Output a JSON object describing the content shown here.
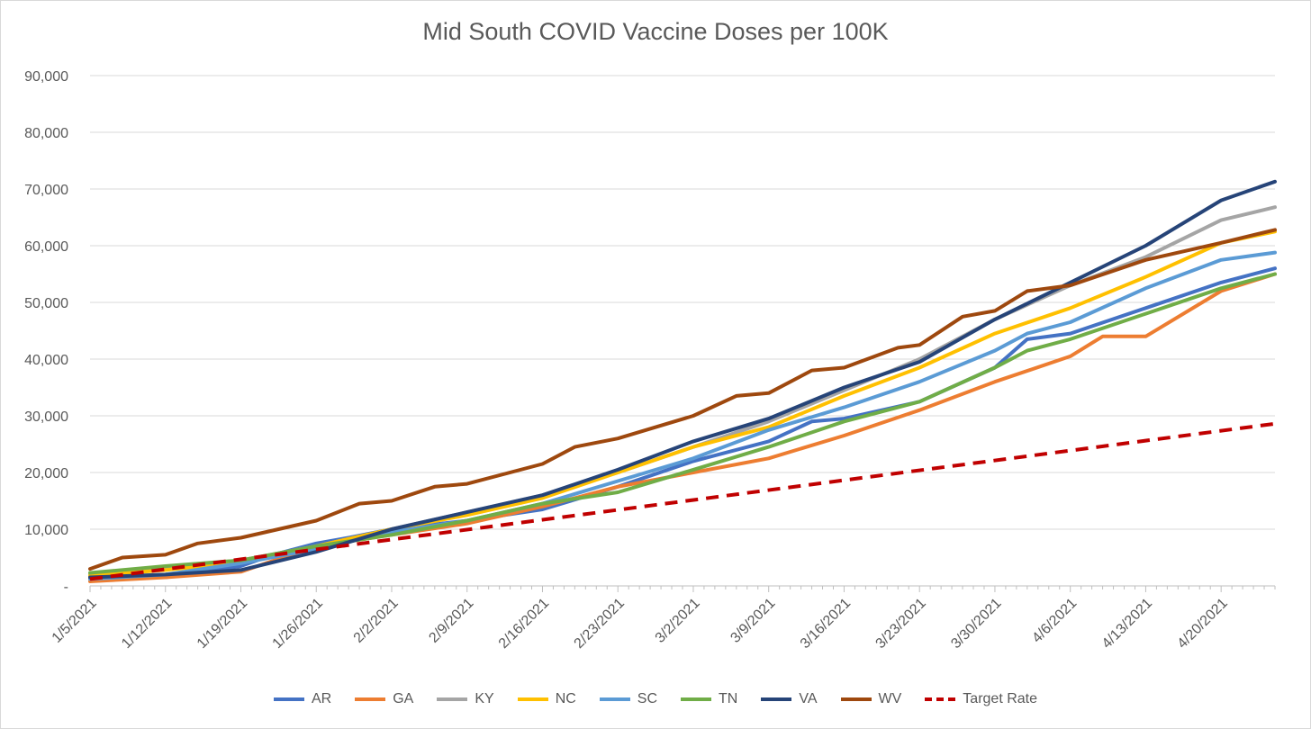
{
  "chart_data": {
    "type": "line",
    "title": "Mid South COVID Vaccine Doses per 100K",
    "xlabel": "",
    "ylabel": "",
    "ylim": [
      0,
      90000
    ],
    "y_ticks": [
      {
        "value": 0,
        "label": "-"
      },
      {
        "value": 10000,
        "label": "10,000"
      },
      {
        "value": 20000,
        "label": "20,000"
      },
      {
        "value": 30000,
        "label": "30,000"
      },
      {
        "value": 40000,
        "label": "40,000"
      },
      {
        "value": 50000,
        "label": "50,000"
      },
      {
        "value": 60000,
        "label": "60,000"
      },
      {
        "value": 70000,
        "label": "70,000"
      },
      {
        "value": 80000,
        "label": "80,000"
      },
      {
        "value": 90000,
        "label": "90,000"
      }
    ],
    "x_range": [
      "1/5/2021",
      "4/25/2021"
    ],
    "x_tick_labels": [
      "1/5/2021",
      "1/12/2021",
      "1/19/2021",
      "1/26/2021",
      "2/2/2021",
      "2/9/2021",
      "2/16/2021",
      "2/23/2021",
      "3/2/2021",
      "3/9/2021",
      "3/16/2021",
      "3/23/2021",
      "3/30/2021",
      "4/6/2021",
      "4/13/2021",
      "4/20/2021"
    ],
    "grid": "horizontal",
    "legend_position": "bottom",
    "series": [
      {
        "name": "AR",
        "color": "#4472c4",
        "dashed": false,
        "points": [
          [
            "1/5/2021",
            1500
          ],
          [
            "1/12/2021",
            1500
          ],
          [
            "1/19/2021",
            3500
          ],
          [
            "1/22/2021",
            5500
          ],
          [
            "1/26/2021",
            7500
          ],
          [
            "1/29/2021",
            8500
          ],
          [
            "2/2/2021",
            10000
          ],
          [
            "2/9/2021",
            11500
          ],
          [
            "2/16/2021",
            13500
          ],
          [
            "2/23/2021",
            17500
          ],
          [
            "3/2/2021",
            22000
          ],
          [
            "3/9/2021",
            25500
          ],
          [
            "3/13/2021",
            29000
          ],
          [
            "3/16/2021",
            29500
          ],
          [
            "3/23/2021",
            32500
          ],
          [
            "3/30/2021",
            38500
          ],
          [
            "4/2/2021",
            43500
          ],
          [
            "4/6/2021",
            44500
          ],
          [
            "4/13/2021",
            49000
          ],
          [
            "4/20/2021",
            53500
          ],
          [
            "4/25/2021",
            56000
          ]
        ]
      },
      {
        "name": "GA",
        "color": "#ed7d31",
        "dashed": false,
        "points": [
          [
            "1/5/2021",
            800
          ],
          [
            "1/12/2021",
            1500
          ],
          [
            "1/19/2021",
            2500
          ],
          [
            "1/26/2021",
            7000
          ],
          [
            "2/2/2021",
            9000
          ],
          [
            "2/9/2021",
            11000
          ],
          [
            "2/16/2021",
            14000
          ],
          [
            "2/23/2021",
            17500
          ],
          [
            "3/2/2021",
            20000
          ],
          [
            "3/9/2021",
            22500
          ],
          [
            "3/16/2021",
            26500
          ],
          [
            "3/23/2021",
            31000
          ],
          [
            "3/30/2021",
            36000
          ],
          [
            "4/6/2021",
            40500
          ],
          [
            "4/9/2021",
            44000
          ],
          [
            "4/13/2021",
            44000
          ],
          [
            "4/20/2021",
            52000
          ],
          [
            "4/25/2021",
            55000
          ]
        ]
      },
      {
        "name": "KY",
        "color": "#a5a5a5",
        "dashed": false,
        "points": [
          [
            "1/5/2021",
            2000
          ],
          [
            "1/12/2021",
            3000
          ],
          [
            "1/19/2021",
            4500
          ],
          [
            "1/26/2021",
            7000
          ],
          [
            "2/2/2021",
            10000
          ],
          [
            "2/9/2021",
            13000
          ],
          [
            "2/16/2021",
            16000
          ],
          [
            "2/23/2021",
            20000
          ],
          [
            "3/2/2021",
            24500
          ],
          [
            "3/9/2021",
            29000
          ],
          [
            "3/16/2021",
            34500
          ],
          [
            "3/23/2021",
            40000
          ],
          [
            "3/30/2021",
            47000
          ],
          [
            "4/6/2021",
            53000
          ],
          [
            "4/13/2021",
            58000
          ],
          [
            "4/20/2021",
            64500
          ],
          [
            "4/25/2021",
            66800
          ]
        ]
      },
      {
        "name": "NC",
        "color": "#ffc000",
        "dashed": false,
        "points": [
          [
            "1/5/2021",
            1800
          ],
          [
            "1/12/2021",
            2800
          ],
          [
            "1/19/2021",
            4200
          ],
          [
            "1/26/2021",
            7000
          ],
          [
            "2/2/2021",
            10000
          ],
          [
            "2/9/2021",
            12500
          ],
          [
            "2/16/2021",
            15500
          ],
          [
            "2/23/2021",
            20000
          ],
          [
            "3/2/2021",
            24500
          ],
          [
            "3/9/2021",
            28000
          ],
          [
            "3/16/2021",
            33500
          ],
          [
            "3/23/2021",
            38500
          ],
          [
            "3/30/2021",
            44500
          ],
          [
            "4/6/2021",
            49000
          ],
          [
            "4/13/2021",
            54500
          ],
          [
            "4/20/2021",
            60500
          ],
          [
            "4/25/2021",
            62500
          ]
        ]
      },
      {
        "name": "SC",
        "color": "#5b9bd5",
        "dashed": false,
        "points": [
          [
            "1/5/2021",
            1200
          ],
          [
            "1/12/2021",
            2000
          ],
          [
            "1/19/2021",
            4000
          ],
          [
            "1/26/2021",
            6500
          ],
          [
            "2/2/2021",
            9500
          ],
          [
            "2/9/2021",
            11500
          ],
          [
            "2/16/2021",
            14500
          ],
          [
            "2/23/2021",
            18500
          ],
          [
            "3/2/2021",
            22500
          ],
          [
            "3/9/2021",
            27500
          ],
          [
            "3/16/2021",
            31500
          ],
          [
            "3/23/2021",
            36000
          ],
          [
            "3/30/2021",
            41500
          ],
          [
            "4/2/2021",
            44500
          ],
          [
            "4/6/2021",
            46500
          ],
          [
            "4/13/2021",
            52500
          ],
          [
            "4/20/2021",
            57500
          ],
          [
            "4/25/2021",
            58800
          ]
        ]
      },
      {
        "name": "TN",
        "color": "#70ad47",
        "dashed": false,
        "points": [
          [
            "1/5/2021",
            2300
          ],
          [
            "1/12/2021",
            3500
          ],
          [
            "1/19/2021",
            4500
          ],
          [
            "1/26/2021",
            7000
          ],
          [
            "2/2/2021",
            9000
          ],
          [
            "2/9/2021",
            11500
          ],
          [
            "2/16/2021",
            14500
          ],
          [
            "2/23/2021",
            16500
          ],
          [
            "3/2/2021",
            20500
          ],
          [
            "3/9/2021",
            24500
          ],
          [
            "3/16/2021",
            29000
          ],
          [
            "3/23/2021",
            32500
          ],
          [
            "3/30/2021",
            38500
          ],
          [
            "4/2/2021",
            41500
          ],
          [
            "4/6/2021",
            43500
          ],
          [
            "4/13/2021",
            48000
          ],
          [
            "4/20/2021",
            52500
          ],
          [
            "4/25/2021",
            55000
          ]
        ]
      },
      {
        "name": "VA",
        "color": "#264478",
        "dashed": false,
        "points": [
          [
            "1/5/2021",
            1500
          ],
          [
            "1/12/2021",
            2000
          ],
          [
            "1/19/2021",
            2800
          ],
          [
            "1/26/2021",
            6000
          ],
          [
            "2/2/2021",
            10000
          ],
          [
            "2/9/2021",
            13000
          ],
          [
            "2/16/2021",
            16000
          ],
          [
            "2/23/2021",
            20500
          ],
          [
            "3/2/2021",
            25500
          ],
          [
            "3/9/2021",
            29500
          ],
          [
            "3/16/2021",
            35000
          ],
          [
            "3/23/2021",
            39500
          ],
          [
            "3/30/2021",
            47000
          ],
          [
            "4/6/2021",
            53500
          ],
          [
            "4/13/2021",
            60000
          ],
          [
            "4/20/2021",
            68000
          ],
          [
            "4/25/2021",
            71300
          ]
        ]
      },
      {
        "name": "WV",
        "color": "#9e480e",
        "dashed": false,
        "points": [
          [
            "1/5/2021",
            3000
          ],
          [
            "1/8/2021",
            5000
          ],
          [
            "1/12/2021",
            5500
          ],
          [
            "1/15/2021",
            7500
          ],
          [
            "1/19/2021",
            8500
          ],
          [
            "1/26/2021",
            11500
          ],
          [
            "1/30/2021",
            14500
          ],
          [
            "2/2/2021",
            15000
          ],
          [
            "2/6/2021",
            17500
          ],
          [
            "2/9/2021",
            18000
          ],
          [
            "2/16/2021",
            21500
          ],
          [
            "2/19/2021",
            24500
          ],
          [
            "2/23/2021",
            26000
          ],
          [
            "3/2/2021",
            30000
          ],
          [
            "3/6/2021",
            33500
          ],
          [
            "3/9/2021",
            34000
          ],
          [
            "3/13/2021",
            38000
          ],
          [
            "3/16/2021",
            38500
          ],
          [
            "3/21/2021",
            42000
          ],
          [
            "3/23/2021",
            42500
          ],
          [
            "3/27/2021",
            47500
          ],
          [
            "3/30/2021",
            48500
          ],
          [
            "4/2/2021",
            52000
          ],
          [
            "4/6/2021",
            53000
          ],
          [
            "4/13/2021",
            57500
          ],
          [
            "4/20/2021",
            60500
          ],
          [
            "4/25/2021",
            62800
          ]
        ]
      },
      {
        "name": "Target Rate",
        "color": "#c00000",
        "dashed": true,
        "points": [
          [
            "1/5/2021",
            1200
          ],
          [
            "4/25/2021",
            28600
          ]
        ]
      }
    ]
  }
}
